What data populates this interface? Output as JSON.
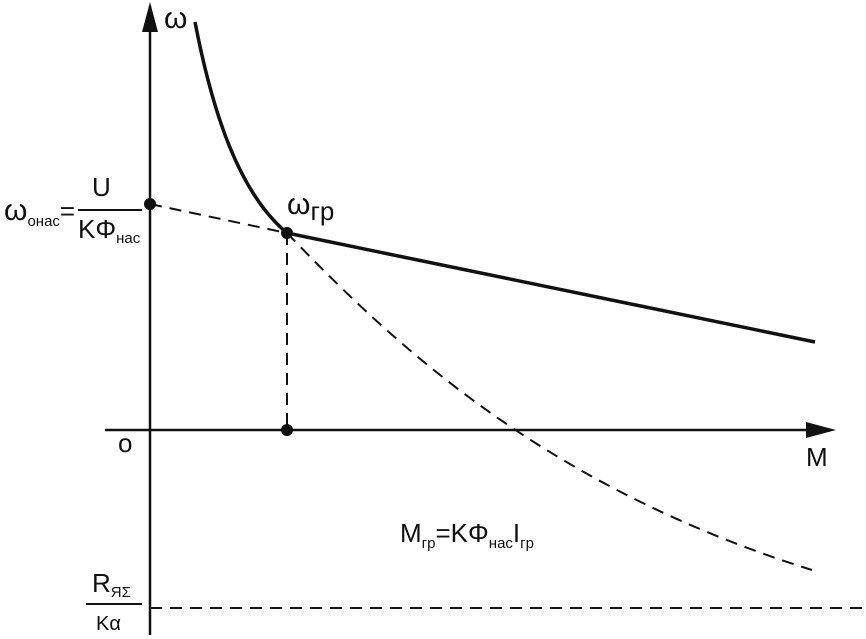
{
  "axes": {
    "y_label": "ω",
    "x_label": "M",
    "origin": "o"
  },
  "omega_onas": {
    "symbol": "ω",
    "subscript": "онас",
    "equals": "=",
    "numerator": "U",
    "denominator": "KΦ",
    "denominator_subscript": "нас"
  },
  "omega_gr": {
    "symbol": "ω",
    "subscript": "гр"
  },
  "moment_formula": {
    "symbol": "M",
    "subscript": "гр",
    "equals_part": "=KΦ",
    "flux_subscript": "нас",
    "current": "I",
    "current_subscript": "гр"
  },
  "resistance_fraction": {
    "numerator": "R",
    "numerator_subscript": "ЯΣ",
    "denominator": "Kα"
  }
}
